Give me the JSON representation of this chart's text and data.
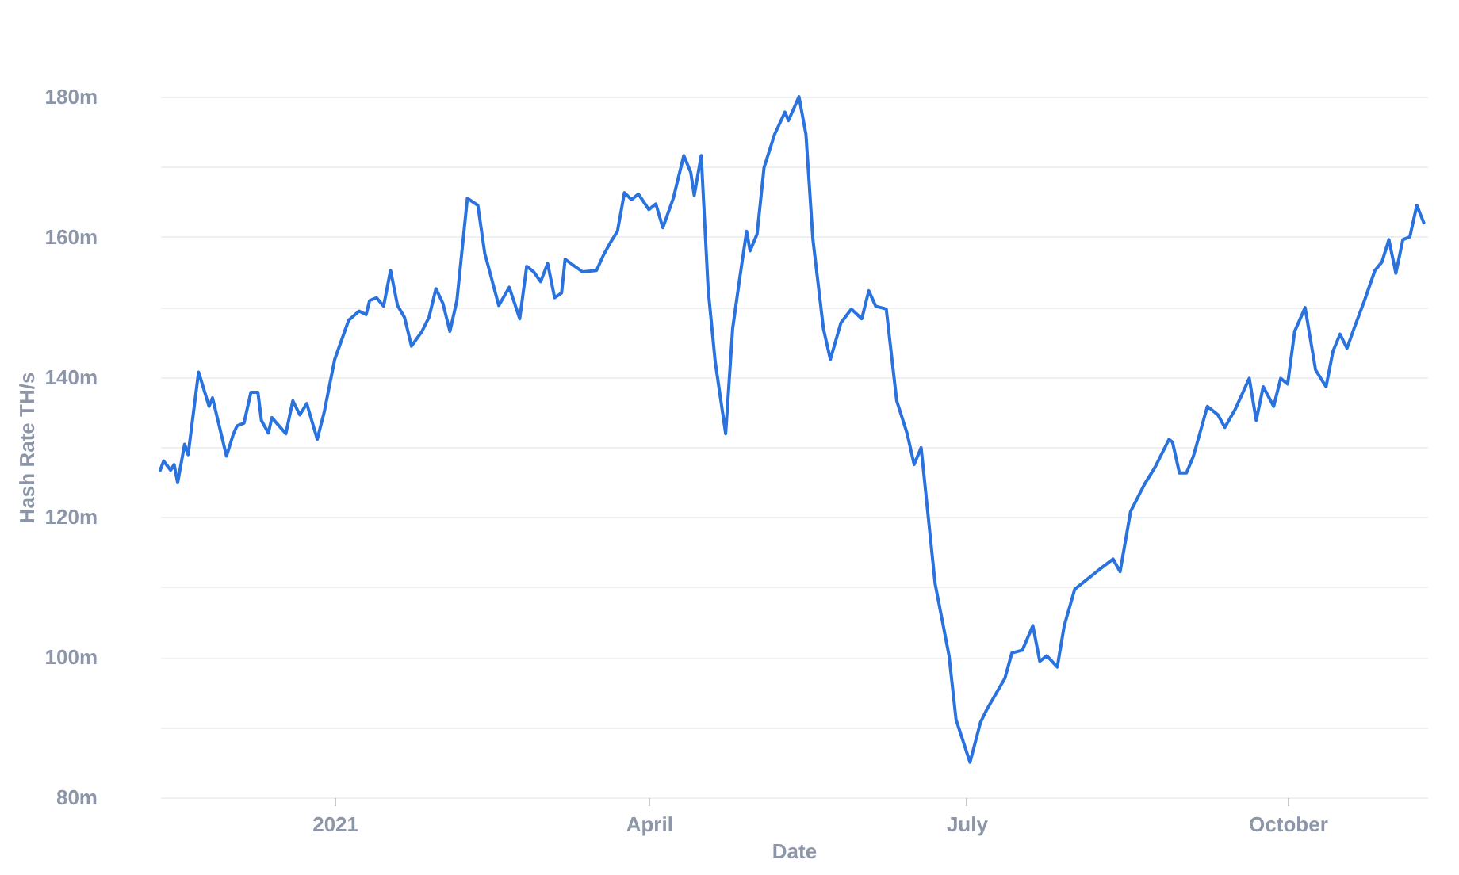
{
  "chart_data": {
    "type": "line",
    "xlabel": "Date",
    "ylabel": "Hash Rate TH/s",
    "x": [
      "2020-11-12",
      "2020-11-13",
      "2020-11-15",
      "2020-11-16",
      "2020-11-17",
      "2020-11-19",
      "2020-11-20",
      "2020-11-23",
      "2020-11-26",
      "2020-11-27",
      "2020-12-01",
      "2020-12-03",
      "2020-12-04",
      "2020-12-06",
      "2020-12-08",
      "2020-12-10",
      "2020-12-11",
      "2020-12-13",
      "2020-12-14",
      "2020-12-18",
      "2020-12-20",
      "2020-12-22",
      "2020-12-24",
      "2020-12-27",
      "2020-12-29",
      "2021-01-01",
      "2021-01-05",
      "2021-01-08",
      "2021-01-10",
      "2021-01-11",
      "2021-01-13",
      "2021-01-15",
      "2021-01-17",
      "2021-01-19",
      "2021-01-21",
      "2021-01-23",
      "2021-01-26",
      "2021-01-28",
      "2021-01-30",
      "2021-02-01",
      "2021-02-03",
      "2021-02-05",
      "2021-02-08",
      "2021-02-11",
      "2021-02-13",
      "2021-02-14",
      "2021-02-17",
      "2021-02-20",
      "2021-02-23",
      "2021-02-25",
      "2021-02-27",
      "2021-03-01",
      "2021-03-03",
      "2021-03-05",
      "2021-03-07",
      "2021-03-08",
      "2021-03-13",
      "2021-03-17",
      "2021-03-19",
      "2021-03-21",
      "2021-03-23",
      "2021-03-25",
      "2021-03-27",
      "2021-03-29",
      "2021-04-01",
      "2021-04-03",
      "2021-04-05",
      "2021-04-08",
      "2021-04-11",
      "2021-04-13",
      "2021-04-14",
      "2021-04-16",
      "2021-04-18",
      "2021-04-20",
      "2021-04-23",
      "2021-04-25",
      "2021-04-27",
      "2021-04-29",
      "2021-04-30",
      "2021-05-02",
      "2021-05-04",
      "2021-05-07",
      "2021-05-10",
      "2021-05-11",
      "2021-05-14",
      "2021-05-16",
      "2021-05-18",
      "2021-05-21",
      "2021-05-23",
      "2021-05-26",
      "2021-05-29",
      "2021-06-01",
      "2021-06-03",
      "2021-06-05",
      "2021-06-08",
      "2021-06-11",
      "2021-06-14",
      "2021-06-16",
      "2021-06-18",
      "2021-06-22",
      "2021-06-26",
      "2021-06-28",
      "2021-07-02",
      "2021-07-05",
      "2021-07-07",
      "2021-07-12",
      "2021-07-14",
      "2021-07-17",
      "2021-07-20",
      "2021-07-22",
      "2021-07-24",
      "2021-07-27",
      "2021-07-29",
      "2021-08-01",
      "2021-08-04",
      "2021-08-08",
      "2021-08-12",
      "2021-08-14",
      "2021-08-17",
      "2021-08-21",
      "2021-08-24",
      "2021-08-28",
      "2021-08-29",
      "2021-08-31",
      "2021-09-02",
      "2021-09-04",
      "2021-09-08",
      "2021-09-11",
      "2021-09-13",
      "2021-09-16",
      "2021-09-20",
      "2021-09-22",
      "2021-09-24",
      "2021-09-27",
      "2021-09-29",
      "2021-10-01",
      "2021-10-03",
      "2021-10-06",
      "2021-10-09",
      "2021-10-12",
      "2021-10-14",
      "2021-10-16",
      "2021-10-18",
      "2021-10-20",
      "2021-10-23",
      "2021-10-26",
      "2021-10-28",
      "2021-10-30",
      "2021-11-01",
      "2021-11-03",
      "2021-11-05",
      "2021-11-07",
      "2021-11-09"
    ],
    "series": [
      {
        "color": "#2a72de",
        "values": [
          126.7,
          128.0,
          126.7,
          127.5,
          124.9,
          130.4,
          128.9,
          140.7,
          135.8,
          137.0,
          128.7,
          131.9,
          133.0,
          133.4,
          137.8,
          137.8,
          133.8,
          132.0,
          134.2,
          131.9,
          136.6,
          134.6,
          136.2,
          131.1,
          135.0,
          142.5,
          148.1,
          149.4,
          148.9,
          150.9,
          151.3,
          150.1,
          155.2,
          150.2,
          148.5,
          144.4,
          146.5,
          148.5,
          152.6,
          150.5,
          146.5,
          150.9,
          165.5,
          164.5,
          157.6,
          155.8,
          150.2,
          152.8,
          148.3,
          155.8,
          155.0,
          153.6,
          156.2,
          151.3,
          152.0,
          156.8,
          155.0,
          155.2,
          157.4,
          159.2,
          160.8,
          166.3,
          165.3,
          166.1,
          163.9,
          164.7,
          161.3,
          165.5,
          171.6,
          169.2,
          165.9,
          171.6,
          152.4,
          142.2,
          131.9,
          146.9,
          154.0,
          160.8,
          158.0,
          160.4,
          169.9,
          174.6,
          177.8,
          176.6,
          180.0,
          174.6,
          159.6,
          146.9,
          142.5,
          147.7,
          149.7,
          148.3,
          152.3,
          150.1,
          149.7,
          136.6,
          131.9,
          127.5,
          129.9,
          110.5,
          100.2,
          91.1,
          85.0,
          90.7,
          92.7,
          97.0,
          100.6,
          101.0,
          104.5,
          99.4,
          100.2,
          98.6,
          104.5,
          109.7,
          110.9,
          112.5,
          114.0,
          112.2,
          120.8,
          124.7,
          127.1,
          131.1,
          130.7,
          126.3,
          126.3,
          128.7,
          135.8,
          134.6,
          132.8,
          135.4,
          139.8,
          133.8,
          138.6,
          135.8,
          139.8,
          139.0,
          146.5,
          149.9,
          141.0,
          138.6,
          143.7,
          146.1,
          144.1,
          146.9,
          150.9,
          155.2,
          156.4,
          159.6,
          154.8,
          159.6,
          160.0,
          164.5,
          162.0
        ]
      }
    ],
    "xlim": [
      "2020-11-12",
      "2021-11-10"
    ],
    "xticks": [
      {
        "value": "2021-01-01",
        "label": "2021"
      },
      {
        "value": "2021-04-01",
        "label": "April"
      },
      {
        "value": "2021-07-01",
        "label": "July"
      },
      {
        "value": "2021-10-01",
        "label": "October"
      }
    ],
    "ylim": [
      80,
      180
    ],
    "yticks": [
      {
        "value": 80,
        "label": "80m"
      },
      {
        "value": 90,
        "label": null
      },
      {
        "value": 100,
        "label": "100m"
      },
      {
        "value": 110,
        "label": null
      },
      {
        "value": 120,
        "label": "120m"
      },
      {
        "value": 130,
        "label": null
      },
      {
        "value": 140,
        "label": "140m"
      },
      {
        "value": 150,
        "label": null
      },
      {
        "value": 160,
        "label": "160m"
      },
      {
        "value": 170,
        "label": null
      },
      {
        "value": 180,
        "label": "180m"
      }
    ],
    "grid": "y",
    "marker": "none",
    "line_style": "solid"
  }
}
